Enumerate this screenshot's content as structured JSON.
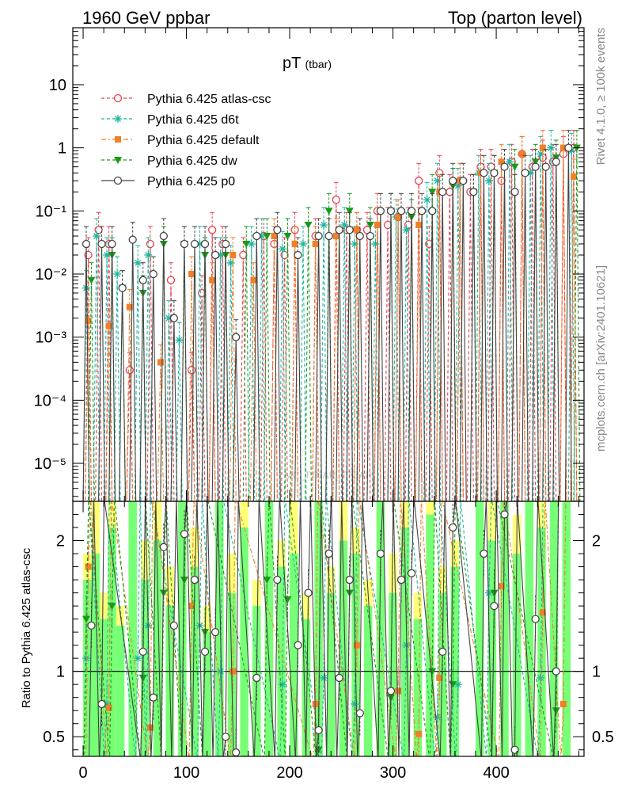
{
  "header": {
    "left": "1960 GeV ppbar",
    "right": "Top (parton level)"
  },
  "side": {
    "top": "Rivet 4.1.0, ≥ 100k events",
    "bottom": "mcplots.cern.ch [arXiv:2401.10621]"
  },
  "watermark": "MC_TTBAR_TTBAR",
  "colors": {
    "atlas_csc": "#e8414f",
    "d6t": "#1fb59e",
    "default": "#f07f29",
    "dw": "#1a9a1a",
    "p0": "#444444",
    "band_yellow": "#ffff77",
    "band_green": "#77ff77"
  },
  "chart_data": {
    "type": "line",
    "title": "pT",
    "title_sub": "(tbar)",
    "upper": {
      "yscale": "log",
      "ylim": [
        2.5e-06,
        80
      ],
      "tick_labels": [
        "10⁻⁵",
        "10⁻⁴",
        "10⁻³",
        "10⁻²",
        "10⁻¹",
        "1",
        "10"
      ],
      "tick_values": [
        1e-05,
        0.0001,
        0.001,
        0.01,
        0.1,
        1,
        10
      ]
    },
    "ratio": {
      "ylabel": "Ratio to Pythia 6.425 atlas-csc",
      "ylim": [
        0.35,
        2.3
      ],
      "tick_values": [
        0.5,
        1,
        2
      ],
      "tick_labels": [
        "0.5",
        "1",
        "2"
      ]
    },
    "x": {
      "xlim": [
        -10,
        485
      ],
      "tick_values": [
        0,
        100,
        200,
        300,
        400
      ],
      "tick_labels": [
        "0",
        "100",
        "200",
        "300",
        "400"
      ]
    },
    "legend_position": "top-left",
    "series": [
      {
        "name": "Pythia 6.425 atlas-csc",
        "key": "atlas_csc",
        "marker": "open-circle",
        "dash": "4,3",
        "x": [
          5,
          15,
          25,
          45,
          65,
          85,
          105,
          115,
          125,
          135,
          155,
          175,
          185,
          195,
          205,
          225,
          245,
          255,
          265,
          275,
          285,
          295,
          305,
          315,
          325,
          335,
          345,
          355,
          365,
          375,
          385,
          395,
          405,
          415,
          425,
          435,
          445,
          455,
          465,
          475
        ],
        "y": [
          0.02,
          0.05,
          0.03,
          0.0003,
          0.03,
          0.008,
          0.0003,
          0.005,
          0.05,
          0.03,
          0.02,
          0.04,
          0.03,
          0.02,
          0.05,
          0.04,
          0.15,
          0.05,
          0.05,
          0.05,
          0.1,
          0.06,
          0.08,
          0.06,
          0.3,
          0.03,
          0.4,
          0.2,
          0.3,
          0.2,
          0.5,
          0.5,
          0.3,
          0.6,
          0.8,
          0.5,
          0.7,
          0.6,
          0.8,
          1.0
        ]
      },
      {
        "name": "Pythia 6.425 d6t",
        "key": "d6t",
        "marker": "star",
        "dash": "4,3",
        "x": [
          3,
          13,
          23,
          33,
          53,
          63,
          83,
          93,
          113,
          133,
          143,
          163,
          173,
          193,
          213,
          233,
          253,
          263,
          283,
          303,
          313,
          333,
          343,
          363,
          383,
          393,
          413,
          433,
          443,
          453,
          473
        ],
        "y": [
          0.006,
          0.04,
          0.02,
          0.01,
          0.015,
          0.02,
          0.002,
          0.0009,
          0.03,
          0.02,
          0.015,
          0.03,
          0.04,
          0.025,
          0.03,
          0.06,
          0.06,
          0.03,
          0.03,
          0.08,
          0.05,
          0.15,
          0.3,
          0.25,
          0.4,
          0.3,
          0.6,
          0.4,
          0.8,
          1.0,
          0.9
        ]
      },
      {
        "name": "Pythia 6.425 default",
        "key": "default",
        "marker": "filled-square",
        "dash": "6,3,2,3",
        "x": [
          5,
          25,
          45,
          75,
          105,
          125,
          145,
          165,
          185,
          205,
          225,
          245,
          265,
          285,
          305,
          325,
          345,
          365,
          385,
          405,
          425,
          445,
          465,
          475
        ],
        "y": [
          0.0018,
          0.0015,
          0.003,
          0.0004,
          0.01,
          0.008,
          0.02,
          0.008,
          0.04,
          0.03,
          0.03,
          0.04,
          0.05,
          0.06,
          0.08,
          0.06,
          0.2,
          0.3,
          0.4,
          0.6,
          0.8,
          1.0,
          1.0,
          0.35
        ]
      },
      {
        "name": "Pythia 6.425 dw",
        "key": "dw",
        "marker": "filled-triangle",
        "dash": "4,3",
        "x": [
          8,
          28,
          38,
          58,
          78,
          98,
          118,
          138,
          158,
          178,
          198,
          218,
          238,
          258,
          278,
          298,
          318,
          338,
          358,
          378,
          398,
          418,
          438,
          458,
          478
        ],
        "y": [
          0.008,
          0.02,
          0.006,
          0.005,
          0.03,
          0.03,
          0.02,
          0.02,
          0.03,
          0.04,
          0.04,
          0.06,
          0.1,
          0.1,
          0.06,
          0.1,
          0.08,
          0.2,
          0.25,
          0.2,
          0.4,
          0.5,
          0.6,
          0.7,
          1.0
        ]
      },
      {
        "name": "Pythia 6.425 p0",
        "key": "p0",
        "marker": "open-circle",
        "dash": "",
        "x": [
          3,
          18,
          28,
          38,
          48,
          58,
          68,
          78,
          88,
          98,
          108,
          118,
          128,
          138,
          148,
          168,
          188,
          208,
          228,
          238,
          248,
          258,
          268,
          278,
          288,
          298,
          308,
          318,
          328,
          338,
          348,
          358,
          368,
          378,
          388,
          398,
          408,
          418,
          428,
          438,
          448,
          458,
          470
        ],
        "y": [
          0.03,
          0.03,
          0.03,
          0.006,
          0.035,
          0.008,
          0.01,
          0.04,
          0.002,
          0.03,
          0.03,
          0.03,
          0.02,
          0.03,
          0.001,
          0.04,
          0.05,
          0.02,
          0.04,
          0.04,
          0.05,
          0.05,
          0.04,
          0.04,
          0.1,
          0.1,
          0.1,
          0.1,
          0.1,
          0.1,
          0.2,
          0.3,
          0.3,
          0.2,
          0.4,
          0.4,
          0.5,
          0.2,
          0.4,
          0.5,
          0.5,
          0.6,
          1.0
        ]
      }
    ],
    "ratio_series": [
      {
        "key": "d6t",
        "x": [
          3,
          23,
          53,
          63,
          113,
          133,
          193,
          233,
          263,
          313,
          343,
          363,
          393,
          443
        ],
        "y": [
          1.1,
          0.75,
          1.1,
          1.35,
          1.35,
          1.0,
          0.9,
          0.95,
          0.75,
          1.2,
          0.65,
          0.9,
          1.6,
          0.95
        ]
      },
      {
        "key": "default",
        "x": [
          5,
          25,
          65,
          105,
          145,
          225,
          265,
          305,
          325,
          345,
          405,
          445,
          465
        ],
        "y": [
          1.8,
          0.72,
          0.57,
          1.5,
          1.0,
          0.75,
          1.2,
          0.85,
          0.52,
          0.95,
          1.65,
          1.45,
          0.75
        ]
      },
      {
        "key": "dw",
        "x": [
          3,
          28,
          58,
          78,
          98,
          118,
          178,
          198,
          228,
          258,
          298,
          338,
          358,
          398,
          458
        ],
        "y": [
          1.4,
          1.5,
          0.95,
          1.6,
          1.7,
          1.3,
          1.7,
          1.55,
          0.4,
          1.6,
          0.8,
          1.0,
          0.9,
          1.6,
          0.7
        ]
      },
      {
        "key": "p0",
        "x": [
          8,
          18,
          58,
          68,
          78,
          88,
          98,
          108,
          118,
          128,
          138,
          148,
          168,
          188,
          208,
          218,
          228,
          238,
          248,
          258,
          268,
          288,
          298,
          308,
          318,
          348,
          358,
          388,
          398,
          408,
          418,
          438,
          458
        ],
        "y": [
          1.35,
          0.75,
          1.15,
          0.8,
          1.95,
          1.35,
          2.05,
          1.7,
          1.15,
          1.3,
          0.5,
          0.38,
          0.95,
          1.7,
          1.2,
          1.6,
          0.55,
          1.9,
          0.95,
          1.7,
          0.68,
          1.9,
          0.85,
          1.7,
          1.75,
          1.15,
          2.1,
          1.9,
          1.5,
          2.2,
          0.4,
          1.4,
          1.0
        ]
      }
    ],
    "ratio_band_bins": [
      {
        "x0": 0,
        "x1": 8,
        "y": 1.9,
        "g": 1.7
      },
      {
        "x0": 8,
        "x1": 16,
        "y": 2.3,
        "g": 1.9
      },
      {
        "x0": 16,
        "x1": 24,
        "y": 1.6,
        "g": 1.4
      },
      {
        "x0": 24,
        "x1": 32,
        "y": 2.3,
        "g": 2.1
      },
      {
        "x0": 32,
        "x1": 40,
        "y": 1.5,
        "g": 1.35
      },
      {
        "x0": 44,
        "x1": 52,
        "y": 2.3,
        "g": 2.3
      },
      {
        "x0": 56,
        "x1": 64,
        "y": 2.0,
        "g": 1.7
      },
      {
        "x0": 68,
        "x1": 76,
        "y": 2.3,
        "g": 2.0
      },
      {
        "x0": 80,
        "x1": 88,
        "y": 1.8,
        "g": 1.5
      },
      {
        "x0": 92,
        "x1": 100,
        "y": 2.3,
        "g": 2.3
      },
      {
        "x0": 104,
        "x1": 112,
        "y": 2.1,
        "g": 1.8
      },
      {
        "x0": 116,
        "x1": 124,
        "y": 1.5,
        "g": 1.3
      },
      {
        "x0": 128,
        "x1": 136,
        "y": 2.3,
        "g": 2.3
      },
      {
        "x0": 140,
        "x1": 148,
        "y": 1.9,
        "g": 1.6
      },
      {
        "x0": 152,
        "x1": 160,
        "y": 2.3,
        "g": 2.1
      },
      {
        "x0": 164,
        "x1": 172,
        "y": 1.7,
        "g": 1.5
      },
      {
        "x0": 176,
        "x1": 184,
        "y": 2.3,
        "g": 2.3
      },
      {
        "x0": 188,
        "x1": 196,
        "y": 2.0,
        "g": 1.8
      },
      {
        "x0": 200,
        "x1": 208,
        "y": 2.3,
        "g": 1.9
      },
      {
        "x0": 212,
        "x1": 220,
        "y": 1.6,
        "g": 1.4
      },
      {
        "x0": 224,
        "x1": 232,
        "y": 2.3,
        "g": 2.3
      },
      {
        "x0": 236,
        "x1": 244,
        "y": 1.8,
        "g": 1.6
      },
      {
        "x0": 248,
        "x1": 256,
        "y": 2.3,
        "g": 2.0
      },
      {
        "x0": 260,
        "x1": 268,
        "y": 2.1,
        "g": 1.9
      },
      {
        "x0": 272,
        "x1": 280,
        "y": 1.7,
        "g": 1.5
      },
      {
        "x0": 284,
        "x1": 292,
        "y": 2.3,
        "g": 2.3
      },
      {
        "x0": 296,
        "x1": 304,
        "y": 1.9,
        "g": 1.6
      },
      {
        "x0": 308,
        "x1": 316,
        "y": 2.3,
        "g": 2.1
      },
      {
        "x0": 320,
        "x1": 328,
        "y": 1.6,
        "g": 1.4
      },
      {
        "x0": 332,
        "x1": 340,
        "y": 2.3,
        "g": 2.2
      },
      {
        "x0": 344,
        "x1": 352,
        "y": 1.8,
        "g": 1.6
      },
      {
        "x0": 356,
        "x1": 364,
        "y": 2.0,
        "g": 1.8
      },
      {
        "x0": 380,
        "x1": 388,
        "y": 2.3,
        "g": 2.3
      },
      {
        "x0": 392,
        "x1": 400,
        "y": 2.3,
        "g": 2.0
      },
      {
        "x0": 404,
        "x1": 412,
        "y": 2.3,
        "g": 2.3
      },
      {
        "x0": 416,
        "x1": 424,
        "y": 2.2,
        "g": 1.9
      },
      {
        "x0": 428,
        "x1": 436,
        "y": 2.3,
        "g": 2.3
      },
      {
        "x0": 440,
        "x1": 448,
        "y": 2.3,
        "g": 2.1
      },
      {
        "x0": 452,
        "x1": 460,
        "y": 2.3,
        "g": 2.3
      },
      {
        "x0": 464,
        "x1": 472,
        "y": 2.3,
        "g": 2.3
      }
    ]
  }
}
